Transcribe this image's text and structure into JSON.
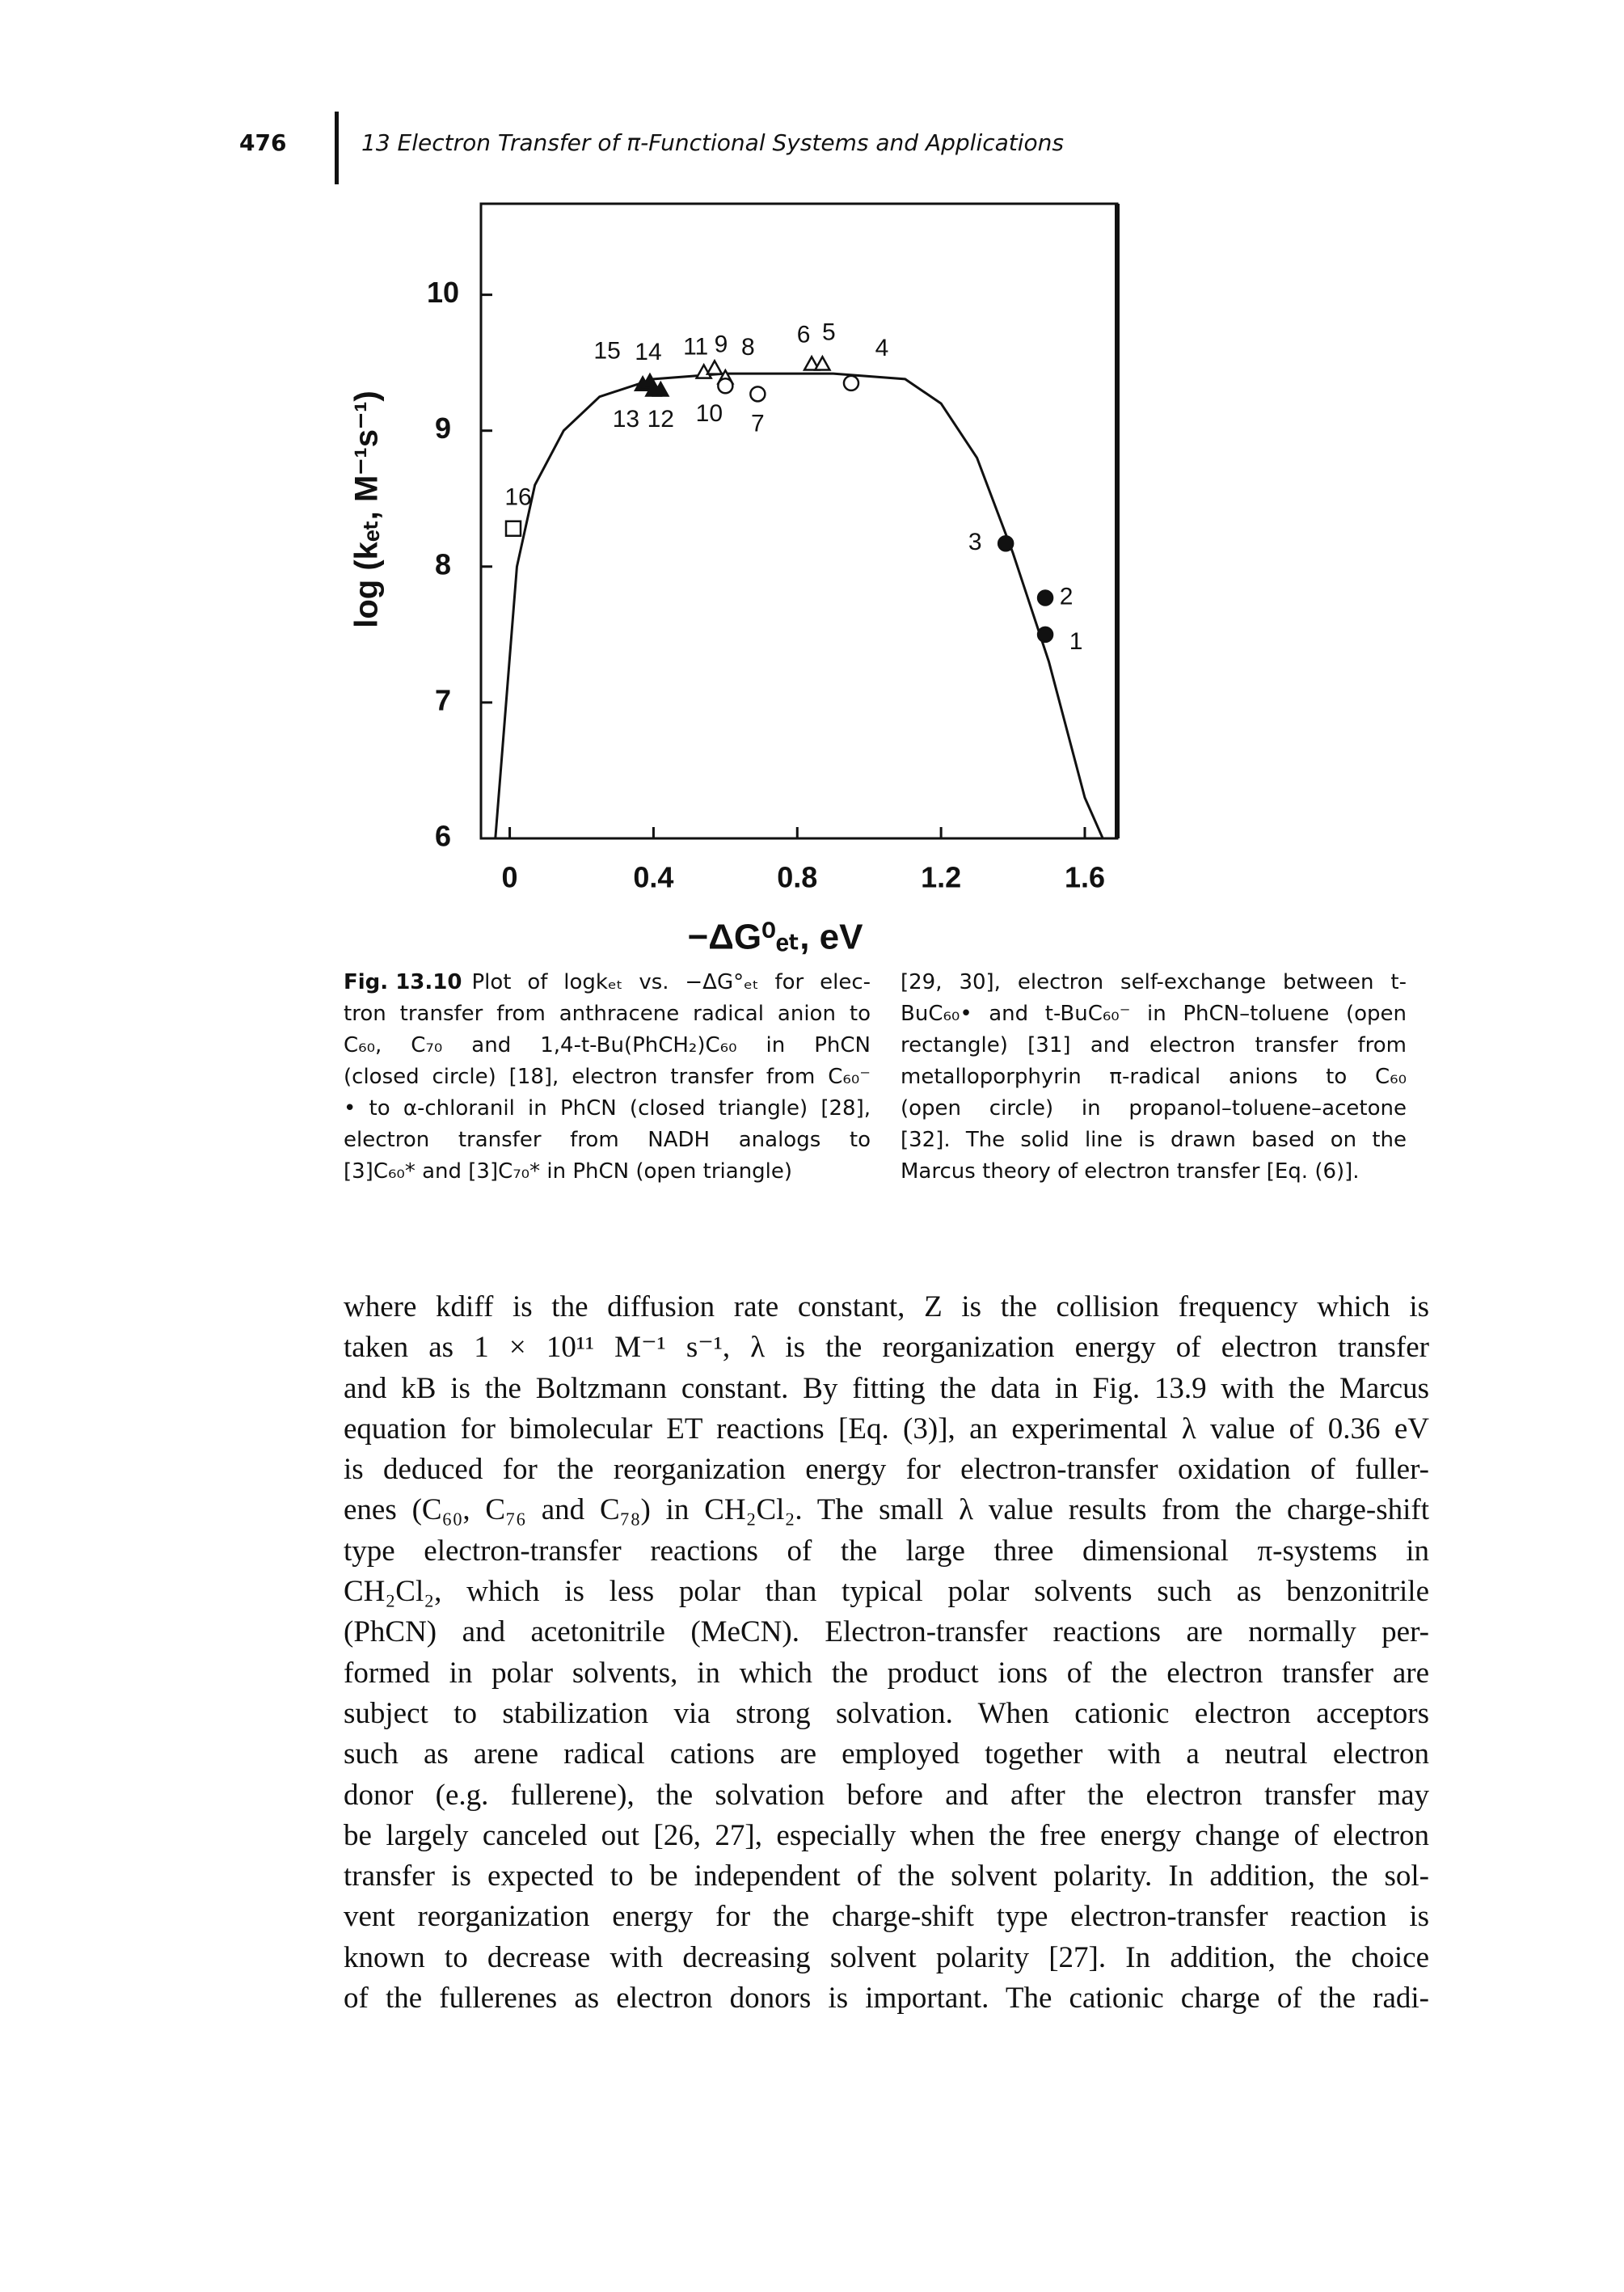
{
  "header": {
    "page_number": "476",
    "title": "13 Electron Transfer of π-Functional Systems and Applications"
  },
  "chart_data": {
    "type": "scatter",
    "xlabel": "−ΔG⁰ₑₜ, eV",
    "ylabel": "log (kₑₜ, M⁻¹s⁻¹)",
    "xlim": [
      -0.08,
      1.69
    ],
    "ylim": [
      6,
      10.67
    ],
    "xticks": [
      0,
      0.4,
      0.8,
      1.2,
      1.6
    ],
    "yticks": [
      6,
      7,
      8,
      9,
      10
    ],
    "series": [
      {
        "marker": "square",
        "filled": false,
        "color": "#111111",
        "x": [
          0.01
        ],
        "values": [
          8.28
        ],
        "labels": [
          "16"
        ]
      },
      {
        "marker": "triangle",
        "filled": true,
        "color": "#111111",
        "x": [
          0.37,
          0.39,
          0.4,
          0.42
        ],
        "values": [
          9.34,
          9.36,
          9.3,
          9.3
        ],
        "labels": [
          "15",
          "14",
          "13",
          "12"
        ]
      },
      {
        "marker": "triangle",
        "filled": false,
        "color": "#111111",
        "x": [
          0.54,
          0.57,
          0.6,
          0.84,
          0.87
        ],
        "values": [
          9.43,
          9.46,
          9.39,
          9.49,
          9.49
        ],
        "labels": [
          "11",
          "9",
          "8",
          "6",
          "5"
        ]
      },
      {
        "marker": "circle",
        "filled": false,
        "color": "#111111",
        "x": [
          0.6,
          0.69,
          0.95
        ],
        "values": [
          9.33,
          9.27,
          9.35
        ],
        "labels": [
          "10",
          "7",
          "4"
        ]
      },
      {
        "marker": "circle",
        "filled": true,
        "color": "#111111",
        "x": [
          1.38,
          1.49,
          1.49
        ],
        "values": [
          8.17,
          7.77,
          7.5
        ],
        "labels": [
          "3",
          "2",
          "1"
        ]
      }
    ],
    "curve": {
      "color": "#111111",
      "x": [
        -0.04,
        -0.01,
        0.02,
        0.07,
        0.15,
        0.25,
        0.4,
        0.6,
        0.9,
        1.1,
        1.2,
        1.3,
        1.4,
        1.5,
        1.6,
        1.65
      ],
      "values": [
        6.0,
        7.0,
        8.0,
        8.6,
        9.0,
        9.25,
        9.38,
        9.42,
        9.42,
        9.38,
        9.2,
        8.8,
        8.1,
        7.3,
        6.3,
        6.0
      ]
    }
  },
  "caption": {
    "label": "Fig. 13.10",
    "left_lines": [
      "Plot of logkₑₜ vs. −ΔG°ₑₜ for elec-",
      "tron transfer from anthracene radical anion to",
      "C₆₀, C₇₀ and 1,4-t-Bu(PhCH₂)C₆₀ in PhCN",
      "(closed circle) [18], electron transfer from C₆₀⁻",
      "• to α-chloranil in PhCN (closed triangle) [28],",
      "electron transfer from NADH analogs to",
      "[3]C₆₀* and [3]C₇₀* in PhCN (open triangle)"
    ],
    "right_lines": [
      "[29, 30], electron self-exchange between t-",
      "BuC₆₀• and t-BuC₆₀⁻ in PhCN–toluene (open",
      "rectangle) [31] and electron transfer from",
      "metalloporphyrin π-radical anions to C₆₀",
      "(open circle) in propanol–toluene–acetone",
      "[32]. The solid line is drawn based on the",
      "Marcus theory of electron transfer [Eq. (6)]."
    ]
  },
  "body": {
    "lines": [
      "where kdiff is the diffusion rate constant, Z is the collision frequency which is",
      "taken as 1 × 10¹¹ M⁻¹ s⁻¹, λ is the reorganization energy of electron transfer",
      "and kB is the Boltzmann constant. By fitting the data in Fig. 13.9 with the Marcus",
      "equation for bimolecular ET reactions [Eq. (3)], an experimental λ value of 0.36 eV",
      "is deduced for the reorganization energy for electron-transfer oxidation of fuller-",
      "enes (C₆₀, C₇₆ and C₇₈) in CH₂Cl₂. The small λ value results from the charge-shift",
      "type electron-transfer reactions of the large three dimensional π-systems in",
      "CH₂Cl₂, which is less polar than typical polar solvents such as benzonitrile",
      "(PhCN) and acetonitrile (MeCN). Electron-transfer reactions are normally per-",
      "formed in polar solvents, in which the product ions of the electron transfer are",
      "subject to stabilization via strong solvation. When cationic electron acceptors",
      "such as arene radical cations are employed together with a neutral electron",
      "donor (e.g. fullerene), the solvation before and after the electron transfer may",
      "be largely canceled out [26, 27], especially when the free energy change of electron",
      "transfer is expected to be independent of the solvent polarity. In addition, the sol-",
      "vent reorganization energy for the charge-shift type electron-transfer reaction is",
      "known to decrease with decreasing solvent polarity [27]. In addition, the choice",
      "of the fullerenes as electron donors is important. The cationic charge of the radi-"
    ]
  }
}
